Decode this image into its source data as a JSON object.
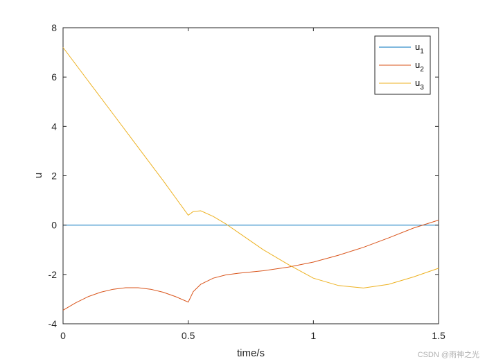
{
  "chart_data": {
    "type": "line",
    "xlabel": "time/s",
    "ylabel": "u",
    "xlim": [
      0,
      1.5
    ],
    "ylim": [
      -4,
      8
    ],
    "xticks": [
      0,
      0.5,
      1,
      1.5
    ],
    "yticks": [
      -4,
      -2,
      0,
      2,
      4,
      6,
      8
    ],
    "grid": false,
    "legend_position": "top-right",
    "series": [
      {
        "name": "u",
        "name_subscript": "1",
        "color": "#0072bd",
        "x": [
          0,
          1.5
        ],
        "y": [
          0,
          0
        ]
      },
      {
        "name": "u",
        "name_subscript": "2",
        "color": "#d95319",
        "x": [
          0,
          0.05,
          0.1,
          0.15,
          0.2,
          0.25,
          0.3,
          0.35,
          0.4,
          0.45,
          0.5,
          0.52,
          0.55,
          0.6,
          0.65,
          0.7,
          0.8,
          0.9,
          1.0,
          1.1,
          1.2,
          1.3,
          1.4,
          1.5
        ],
        "y": [
          -3.45,
          -3.15,
          -2.9,
          -2.72,
          -2.6,
          -2.54,
          -2.54,
          -2.6,
          -2.72,
          -2.9,
          -3.12,
          -2.7,
          -2.4,
          -2.15,
          -2.02,
          -1.95,
          -1.85,
          -1.7,
          -1.5,
          -1.22,
          -0.9,
          -0.52,
          -0.12,
          0.2
        ]
      },
      {
        "name": "u",
        "name_subscript": "3",
        "color": "#edb120",
        "x": [
          0,
          0.1,
          0.2,
          0.3,
          0.4,
          0.5,
          0.52,
          0.55,
          0.6,
          0.65,
          0.7,
          0.8,
          0.9,
          1.0,
          1.1,
          1.2,
          1.3,
          1.4,
          1.5
        ],
        "y": [
          7.2,
          5.85,
          4.5,
          3.15,
          1.8,
          0.4,
          0.55,
          0.58,
          0.35,
          0.05,
          -0.3,
          -1.0,
          -1.6,
          -2.15,
          -2.45,
          -2.55,
          -2.4,
          -2.1,
          -1.75
        ]
      }
    ]
  },
  "watermark": "CSDN @雨神之光"
}
